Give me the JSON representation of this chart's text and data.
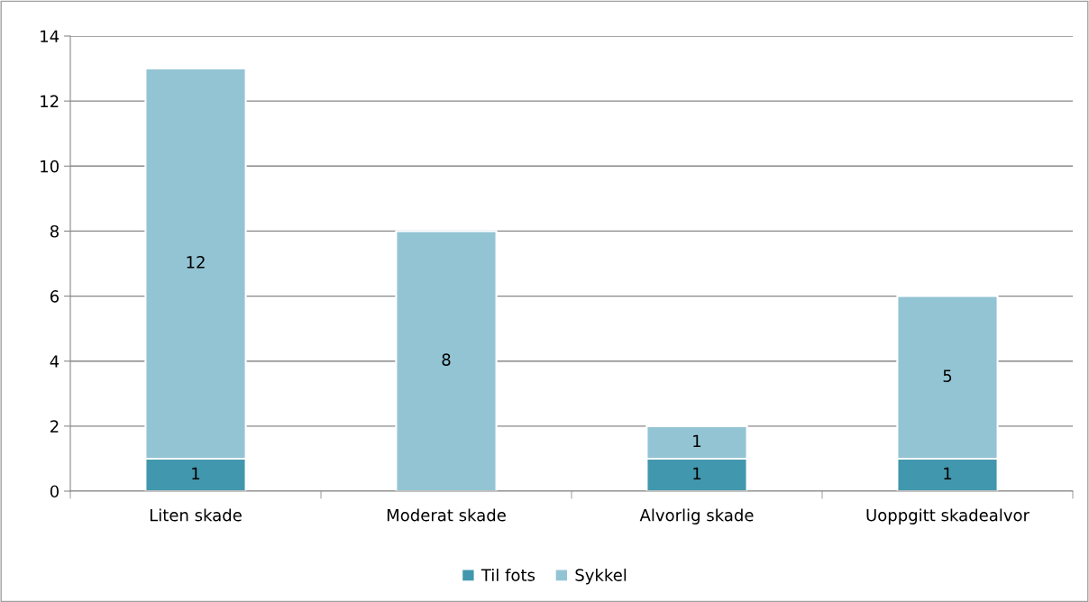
{
  "chart_data": {
    "type": "bar",
    "stacked": true,
    "categories": [
      "Liten skade",
      "Moderat skade",
      "Alvorlig skade",
      "Uoppgitt skadealvor"
    ],
    "series": [
      {
        "name": "Til fots",
        "color": "#4197ad",
        "values": [
          1,
          null,
          1,
          1
        ]
      },
      {
        "name": "Sykkel",
        "color": "#93c4d4",
        "values": [
          12,
          8,
          1,
          5
        ]
      }
    ],
    "ylim": [
      0,
      14
    ],
    "yticks": [
      0,
      2,
      4,
      6,
      8,
      10,
      12,
      14
    ],
    "grid": "y",
    "legend": "bottom",
    "data_labels": true
  }
}
